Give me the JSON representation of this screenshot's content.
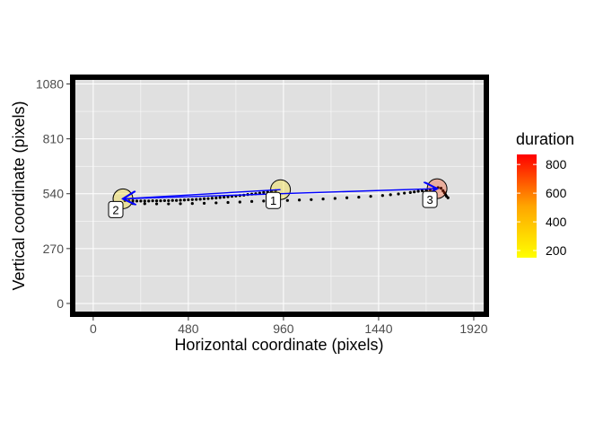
{
  "chart_data": {
    "type": "scatter",
    "xlabel": "Horizontal coordinate (pixels)",
    "ylabel": "Vertical coordinate (pixels)",
    "xlim": [
      -90,
      1970
    ],
    "ylim": [
      -40,
      1100
    ],
    "x_ticks": [
      0,
      480,
      960,
      1440,
      1920
    ],
    "y_ticks": [
      0,
      270,
      540,
      810,
      1080
    ],
    "x_tick_labels": [
      "0",
      "480",
      "960",
      "1440",
      "1920"
    ],
    "y_tick_labels": [
      "0",
      "270",
      "540",
      "810",
      "1080"
    ],
    "grid": true,
    "legend": {
      "title": "duration",
      "position": "right",
      "type": "colorbar",
      "range": [
        150,
        870
      ],
      "ticks": [
        200,
        400,
        600,
        800
      ],
      "tick_labels": [
        "200",
        "400",
        "600",
        "800"
      ],
      "colors": [
        "#ffff00",
        "#ffa500",
        "#ff0000"
      ]
    },
    "fixations": [
      {
        "label": "1",
        "x": 945,
        "y": 560,
        "duration": 250
      },
      {
        "label": "2",
        "x": 150,
        "y": 515,
        "duration": 270
      },
      {
        "label": "3",
        "x": 1735,
        "y": 565,
        "duration": 750
      }
    ],
    "saccades": [
      {
        "from": 0,
        "to": 1
      },
      {
        "from": 1,
        "to": 2
      }
    ],
    "samples": [
      [
        920,
        555
      ],
      [
        900,
        552
      ],
      [
        880,
        548
      ],
      [
        860,
        546
      ],
      [
        840,
        543
      ],
      [
        820,
        540
      ],
      [
        800,
        538
      ],
      [
        780,
        536
      ],
      [
        760,
        533
      ],
      [
        740,
        531
      ],
      [
        720,
        529
      ],
      [
        700,
        527
      ],
      [
        680,
        525
      ],
      [
        660,
        523
      ],
      [
        640,
        521
      ],
      [
        620,
        519
      ],
      [
        600,
        518
      ],
      [
        580,
        516
      ],
      [
        560,
        515
      ],
      [
        540,
        513
      ],
      [
        520,
        512
      ],
      [
        500,
        511
      ],
      [
        480,
        510
      ],
      [
        460,
        509
      ],
      [
        440,
        508
      ],
      [
        420,
        507
      ],
      [
        400,
        507
      ],
      [
        380,
        506
      ],
      [
        360,
        506
      ],
      [
        340,
        505
      ],
      [
        320,
        505
      ],
      [
        300,
        505
      ],
      [
        280,
        504
      ],
      [
        260,
        504
      ],
      [
        240,
        504
      ],
      [
        220,
        504
      ],
      [
        200,
        505
      ],
      [
        180,
        505
      ],
      [
        160,
        506
      ],
      [
        200,
        492
      ],
      [
        260,
        491
      ],
      [
        320,
        490
      ],
      [
        380,
        490
      ],
      [
        440,
        491
      ],
      [
        500,
        492
      ],
      [
        560,
        493
      ],
      [
        620,
        495
      ],
      [
        680,
        497
      ],
      [
        740,
        499
      ],
      [
        800,
        502
      ],
      [
        860,
        504
      ],
      [
        920,
        505
      ],
      [
        980,
        507
      ],
      [
        1040,
        509
      ],
      [
        1100,
        511
      ],
      [
        1160,
        514
      ],
      [
        1220,
        517
      ],
      [
        1280,
        520
      ],
      [
        1340,
        523
      ],
      [
        1400,
        527
      ],
      [
        1460,
        531
      ],
      [
        1500,
        535
      ],
      [
        1540,
        539
      ],
      [
        1570,
        543
      ],
      [
        1600,
        546
      ],
      [
        1620,
        549
      ],
      [
        1640,
        552
      ],
      [
        1660,
        555
      ],
      [
        1680,
        558
      ],
      [
        1700,
        561
      ],
      [
        1720,
        565
      ],
      [
        1740,
        570
      ],
      [
        1755,
        567
      ],
      [
        1765,
        555
      ],
      [
        1772,
        545
      ],
      [
        1778,
        535
      ],
      [
        1783,
        527
      ],
      [
        1790,
        520
      ]
    ]
  }
}
